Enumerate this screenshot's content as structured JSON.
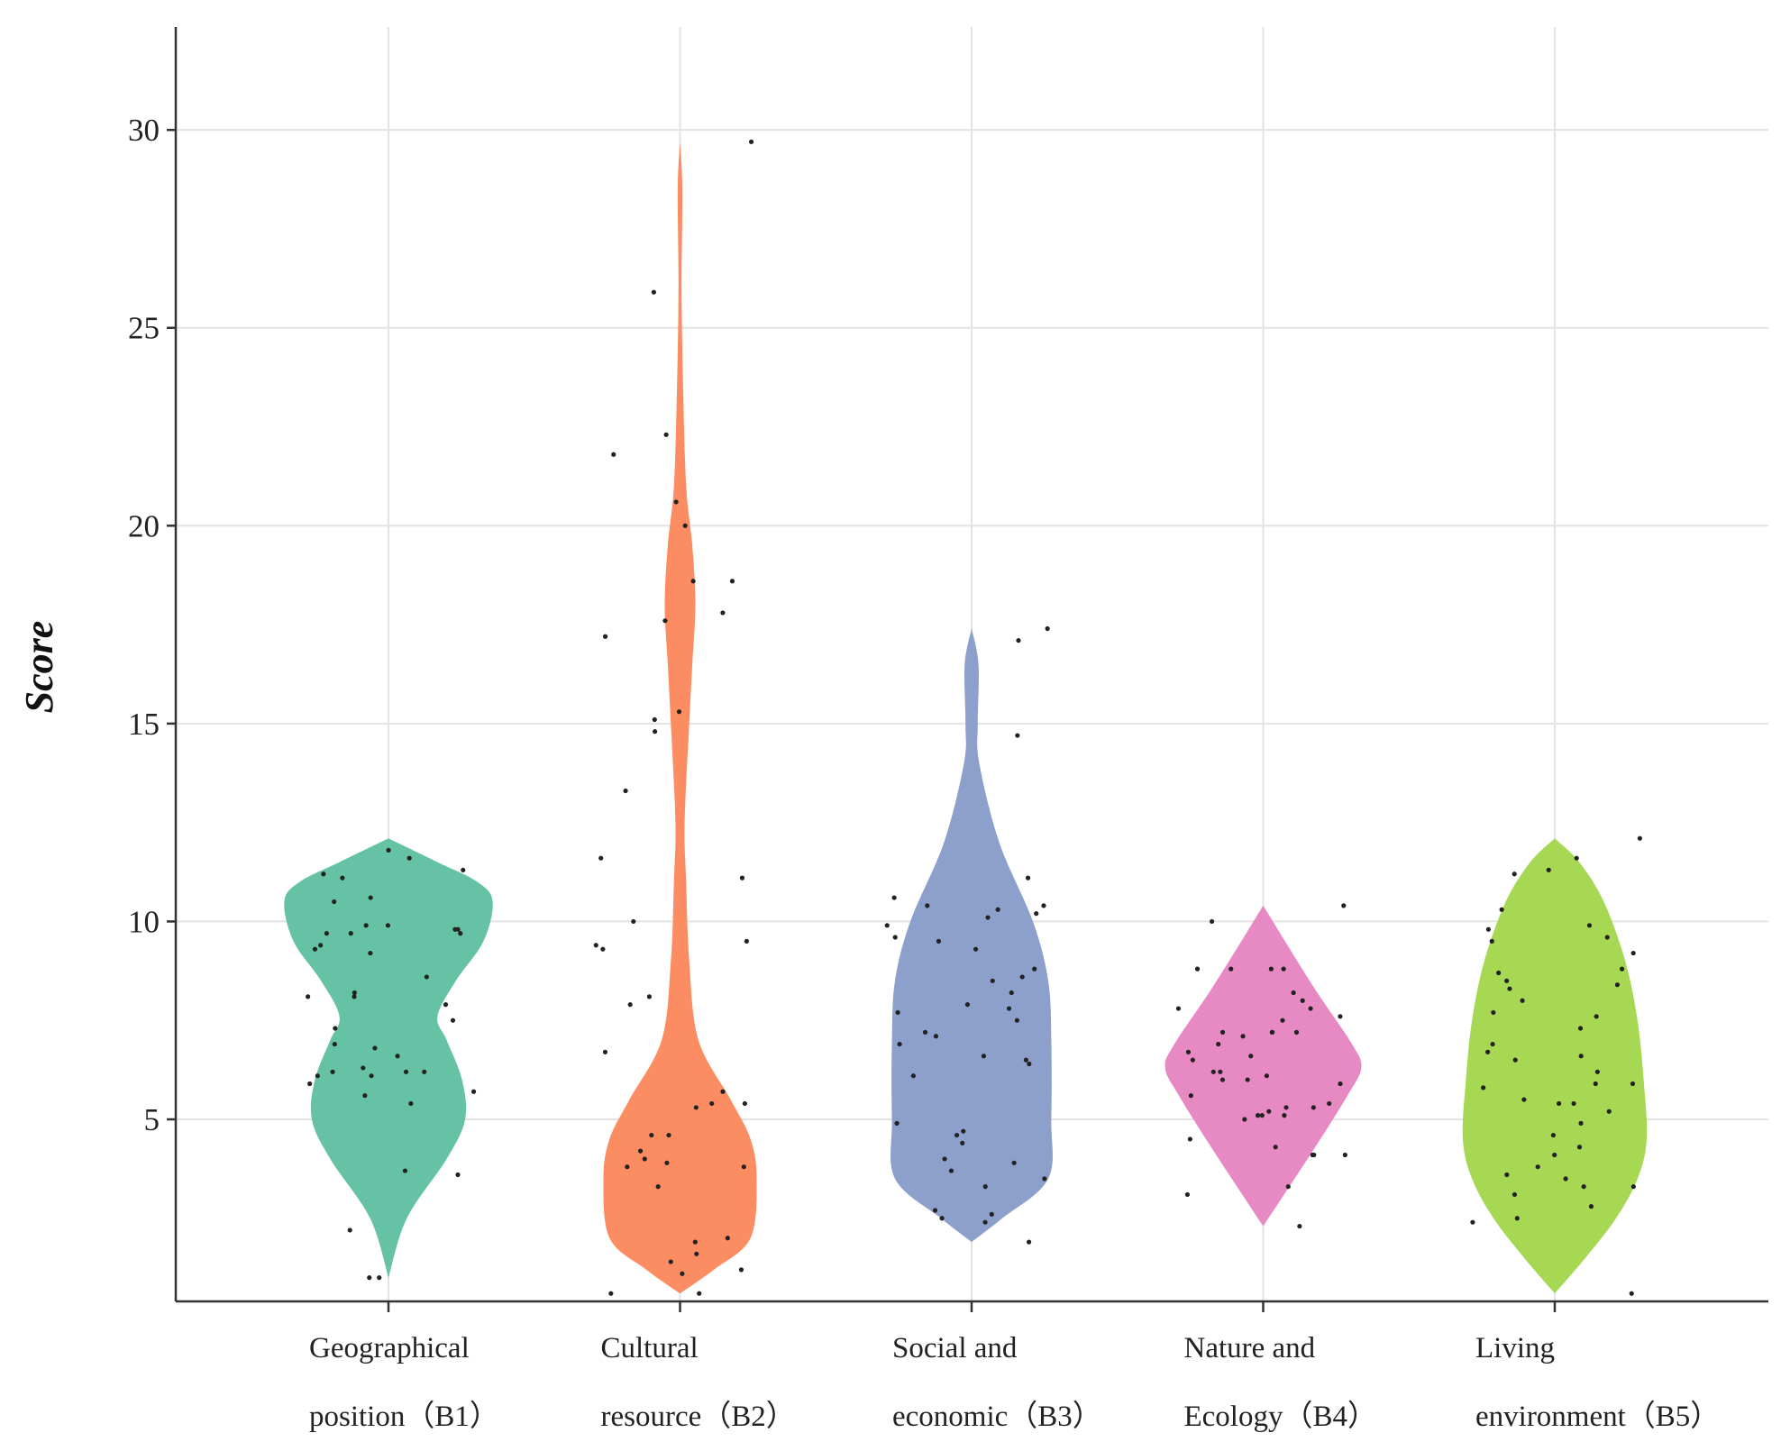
{
  "chart_data": {
    "type": "violin",
    "ylabel": "Score",
    "xlabel": "",
    "ylim": [
      0.4,
      32.6
    ],
    "yticks": [
      5,
      10,
      15,
      20,
      25,
      30
    ],
    "grid": true,
    "categories": [
      {
        "name": "Geographical position（B1）",
        "label_lines": [
          "Geographical",
          "position（B1）"
        ],
        "color": "#66c2a5",
        "points": [
          9.8,
          9.7,
          9.3,
          9.2,
          9.8,
          9.7,
          9.9,
          11.8,
          11.6,
          11.1,
          11.2,
          11.3,
          10.6,
          10.5,
          9.9,
          9.7,
          9.4,
          8.6,
          8.2,
          8.1,
          8.1,
          7.5,
          7.3,
          7.9,
          6.8,
          6.9,
          6.6,
          6.3,
          6.2,
          6.2,
          6.1,
          6.2,
          6.1,
          5.9,
          5.7,
          5.6,
          5.4,
          3.7,
          3.6,
          2.2,
          1.0,
          1.0
        ],
        "violin": [
          [
            1.0,
            0.0
          ],
          [
            2.5,
            0.12
          ],
          [
            4.0,
            0.38
          ],
          [
            5.0,
            0.5
          ],
          [
            6.0,
            0.48
          ],
          [
            7.0,
            0.38
          ],
          [
            7.6,
            0.32
          ],
          [
            8.5,
            0.44
          ],
          [
            9.5,
            0.62
          ],
          [
            10.5,
            0.68
          ],
          [
            11.0,
            0.58
          ],
          [
            11.5,
            0.32
          ],
          [
            12.1,
            0.0
          ]
        ]
      },
      {
        "name": "Cultural resource（B2）",
        "label_lines": [
          "Cultural",
          "resource（B2）"
        ],
        "color": "#fc8d62",
        "points": [
          29.7,
          25.9,
          22.3,
          21.8,
          20.6,
          20.0,
          18.6,
          18.6,
          17.8,
          17.6,
          17.2,
          15.3,
          15.1,
          14.8,
          13.3,
          11.6,
          11.1,
          10.0,
          9.5,
          9.4,
          9.3,
          8.1,
          7.9,
          6.7,
          5.7,
          5.4,
          5.4,
          5.3,
          4.6,
          4.6,
          4.2,
          4.0,
          3.9,
          3.8,
          3.8,
          3.3,
          2.0,
          1.9,
          1.6,
          1.4,
          1.2,
          1.1,
          0.6,
          0.6
        ],
        "violin": [
          [
            0.6,
            0.0
          ],
          [
            1.2,
            0.22
          ],
          [
            2.0,
            0.46
          ],
          [
            3.5,
            0.5
          ],
          [
            4.5,
            0.46
          ],
          [
            5.5,
            0.33
          ],
          [
            7.0,
            0.12
          ],
          [
            9.0,
            0.06
          ],
          [
            11.0,
            0.04
          ],
          [
            12.5,
            0.03
          ],
          [
            15.0,
            0.06
          ],
          [
            16.5,
            0.08
          ],
          [
            18.0,
            0.1
          ],
          [
            19.5,
            0.08
          ],
          [
            21.0,
            0.04
          ],
          [
            23.5,
            0.02
          ],
          [
            26.0,
            0.01
          ],
          [
            28.5,
            0.015
          ],
          [
            29.7,
            0.0
          ]
        ]
      },
      {
        "name": "Social and economic（B3）",
        "label_lines": [
          "Social and",
          "economic（B3）"
        ],
        "color": "#8da0cb",
        "points": [
          17.4,
          17.1,
          14.7,
          11.1,
          10.6,
          10.4,
          10.4,
          10.3,
          10.2,
          10.1,
          9.9,
          9.6,
          9.5,
          9.3,
          8.8,
          8.6,
          8.5,
          8.2,
          7.9,
          7.8,
          7.7,
          7.5,
          7.2,
          7.1,
          6.9,
          6.6,
          6.5,
          6.4,
          6.1,
          4.9,
          4.7,
          4.6,
          4.4,
          4.0,
          3.9,
          3.7,
          3.5,
          3.3,
          2.7,
          2.6,
          2.5,
          2.4,
          1.9
        ],
        "violin": [
          [
            1.9,
            0.0
          ],
          [
            2.5,
            0.2
          ],
          [
            3.5,
            0.5
          ],
          [
            5.0,
            0.52
          ],
          [
            7.0,
            0.52
          ],
          [
            8.5,
            0.5
          ],
          [
            10.0,
            0.4
          ],
          [
            12.0,
            0.18
          ],
          [
            14.0,
            0.05
          ],
          [
            15.0,
            0.04
          ],
          [
            16.5,
            0.045
          ],
          [
            17.4,
            0.0
          ]
        ]
      },
      {
        "name": "Nature and Ecology（B4）",
        "label_lines": [
          "Nature and",
          "Ecology（B4）"
        ],
        "color": "#e78ac3",
        "points": [
          10.4,
          10.0,
          8.8,
          8.8,
          8.8,
          8.8,
          8.2,
          8.0,
          7.8,
          7.8,
          7.6,
          7.5,
          7.2,
          7.2,
          7.2,
          7.2,
          7.1,
          6.9,
          6.7,
          6.6,
          6.5,
          6.2,
          6.2,
          6.1,
          6.0,
          6.0,
          5.9,
          5.6,
          5.4,
          5.3,
          5.3,
          5.2,
          5.1,
          5.1,
          5.1,
          5.0,
          4.5,
          4.3,
          4.1,
          4.1,
          4.1,
          3.3,
          3.1,
          2.3
        ],
        "violin": [
          [
            2.3,
            0.0
          ],
          [
            4.3,
            0.34
          ],
          [
            5.6,
            0.55
          ],
          [
            6.3,
            0.64
          ],
          [
            6.9,
            0.58
          ],
          [
            8.4,
            0.32
          ],
          [
            10.4,
            0.0
          ]
        ]
      },
      {
        "name": "Living environment（B5）",
        "label_lines": [
          "Living",
          "environment（B5）"
        ],
        "color": "#a6d854",
        "points": [
          12.1,
          11.6,
          11.3,
          11.2,
          10.3,
          9.9,
          9.8,
          9.6,
          9.5,
          9.2,
          8.8,
          8.7,
          8.5,
          8.4,
          8.3,
          8.0,
          7.7,
          7.6,
          7.3,
          6.9,
          6.7,
          6.6,
          6.5,
          6.2,
          5.9,
          5.9,
          5.8,
          5.5,
          5.4,
          5.4,
          5.2,
          4.9,
          4.6,
          4.3,
          4.1,
          3.8,
          3.6,
          3.5,
          3.3,
          3.3,
          3.1,
          2.8,
          2.5,
          2.4,
          0.6
        ],
        "violin": [
          [
            0.6,
            0.0
          ],
          [
            1.5,
            0.2
          ],
          [
            2.5,
            0.4
          ],
          [
            3.5,
            0.54
          ],
          [
            4.5,
            0.6
          ],
          [
            6.0,
            0.58
          ],
          [
            7.5,
            0.54
          ],
          [
            9.0,
            0.46
          ],
          [
            10.5,
            0.32
          ],
          [
            11.5,
            0.16
          ],
          [
            12.1,
            0.0
          ]
        ]
      }
    ]
  }
}
